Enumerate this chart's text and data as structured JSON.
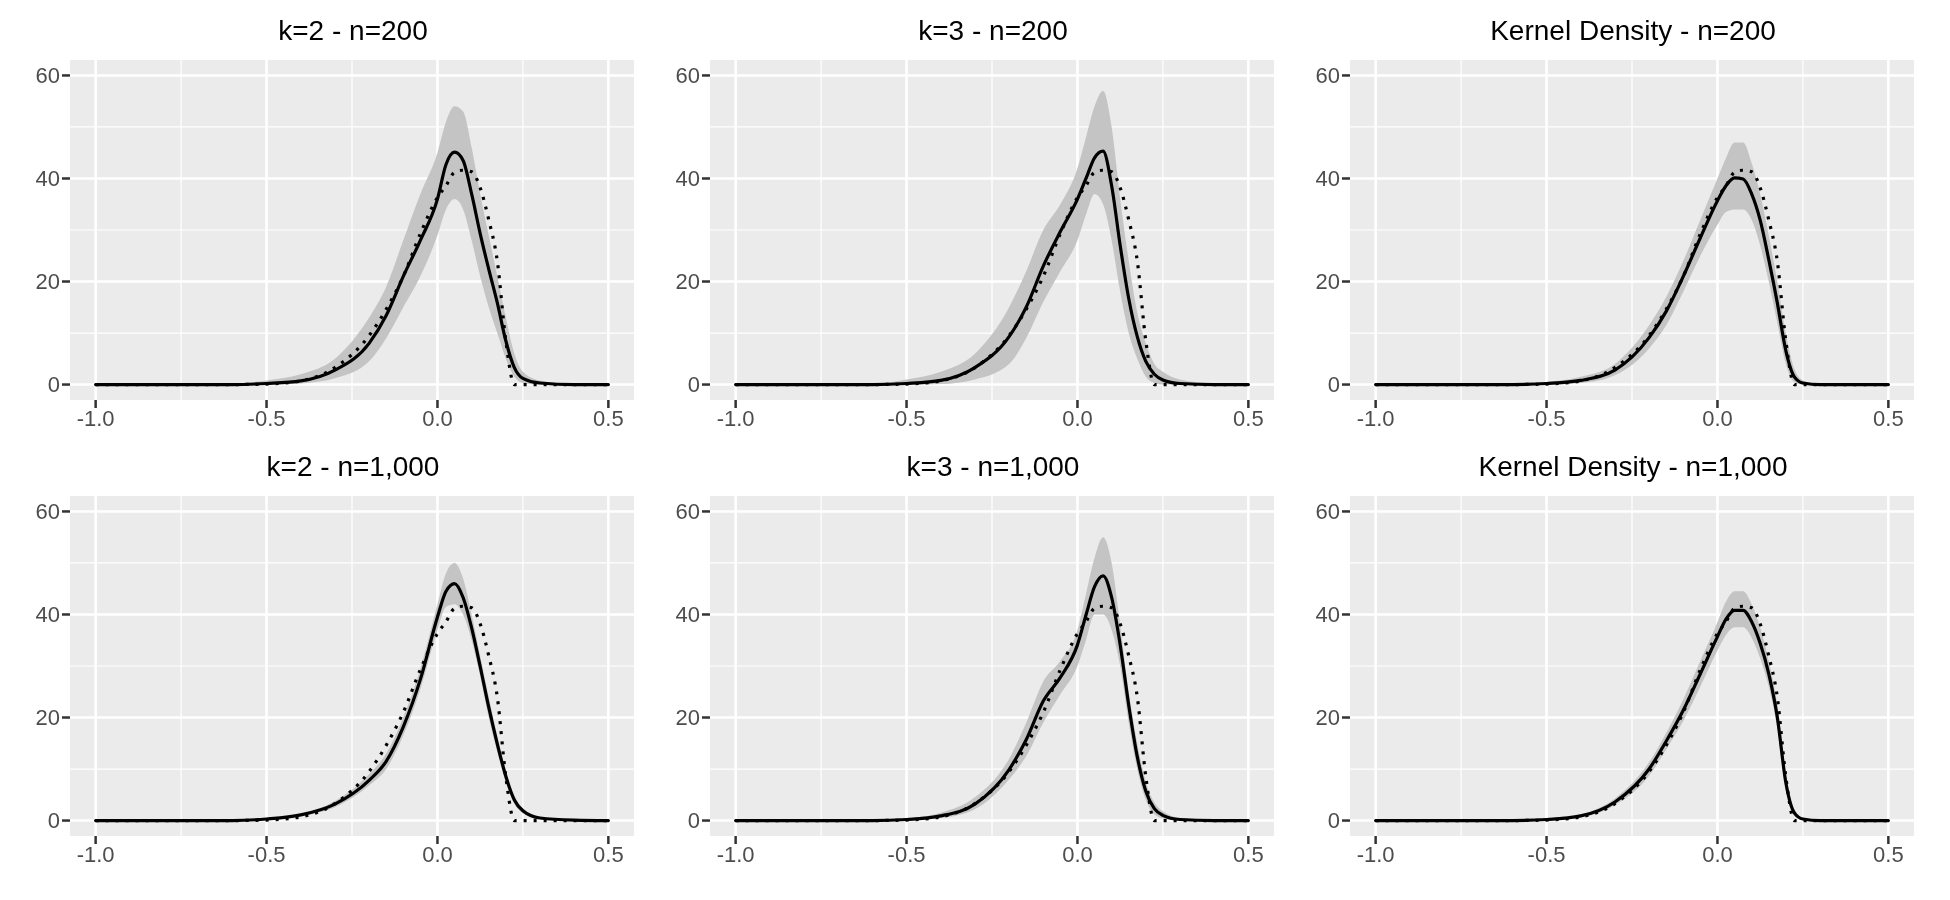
{
  "chart_data": [
    {
      "type": "line",
      "title": "k=2 - n=200",
      "x": [
        -1,
        -0.8,
        -0.6,
        -0.5,
        -0.4,
        -0.3,
        -0.2,
        -0.15,
        -0.1,
        -0.05,
        0,
        0.025,
        0.05,
        0.075,
        0.1,
        0.125,
        0.15,
        0.175,
        0.2,
        0.225,
        0.25,
        0.3,
        0.4,
        0.5
      ],
      "xlim": [
        -1.075,
        0.575
      ],
      "xticks": [
        {
          "value": -1,
          "label": "-1.0"
        },
        {
          "value": -0.5,
          "label": "-0.5"
        },
        {
          "value": 0,
          "label": "0.0"
        },
        {
          "value": 0.5,
          "label": "0.5"
        }
      ],
      "ylim": [
        -3,
        63
      ],
      "yticks": [
        0,
        20,
        40,
        60
      ],
      "grid": true,
      "series": [
        {
          "color": "#000000",
          "line_style": "solid",
          "values": [
            0,
            0,
            0,
            0.2,
            0.7,
            2.8,
            8,
            13.4,
            21,
            28,
            36,
            42.7,
            45.1,
            43.5,
            37,
            29.3,
            22.4,
            15.9,
            8.5,
            3.3,
            1.2,
            0.3,
            0,
            0
          ],
          "lower": [
            0,
            0,
            0,
            0,
            0.2,
            1.2,
            4.5,
            9,
            15,
            21,
            29,
            34,
            36,
            34,
            28,
            21,
            15,
            10,
            5,
            1.5,
            0.3,
            0,
            0,
            0
          ],
          "upper": [
            0,
            0,
            0.2,
            0.8,
            2,
            5,
            13,
            19,
            28,
            37,
            45,
            51,
            54,
            53,
            46,
            37,
            29,
            21,
            13,
            6,
            2.5,
            0.8,
            0.1,
            0
          ]
        },
        {
          "color": "#000000",
          "line_style": "dotted",
          "values": [
            0,
            0,
            0,
            0.1,
            0.7,
            3.3,
            9.5,
            14.6,
            21,
            29.3,
            36.3,
            38.6,
            41.2,
            41.6,
            41.3,
            38.2,
            32,
            24,
            8.5,
            0,
            0,
            0,
            0,
            0
          ]
        }
      ]
    },
    {
      "type": "line",
      "title": "k=3 - n=200",
      "x": [
        -1,
        -0.8,
        -0.6,
        -0.5,
        -0.4,
        -0.3,
        -0.2,
        -0.15,
        -0.1,
        -0.05,
        0,
        0.025,
        0.05,
        0.075,
        0.1,
        0.125,
        0.15,
        0.175,
        0.2,
        0.225,
        0.25,
        0.3,
        0.4,
        0.5
      ],
      "xlim": [
        -1.075,
        0.575
      ],
      "xticks": [
        {
          "value": -1,
          "label": "-1.0"
        },
        {
          "value": -0.5,
          "label": "-0.5"
        },
        {
          "value": 0,
          "label": "0.0"
        },
        {
          "value": 0.5,
          "label": "0.5"
        }
      ],
      "ylim": [
        -3,
        63
      ],
      "yticks": [
        0,
        20,
        40,
        60
      ],
      "grid": true,
      "series": [
        {
          "color": "#000000",
          "line_style": "solid",
          "values": [
            0,
            0,
            0,
            0.2,
            0.8,
            3.3,
            9.3,
            15,
            23,
            29.7,
            36,
            40,
            44,
            45.3,
            38.6,
            27,
            16.7,
            9.3,
            4.5,
            2,
            0.9,
            0.2,
            0,
            0
          ],
          "lower": [
            0,
            0,
            0,
            0,
            0.1,
            1,
            4,
            9,
            16,
            22,
            28,
            33,
            37,
            35,
            28,
            18,
            10,
            5,
            1.5,
            0.3,
            0,
            0,
            0,
            0
          ],
          "upper": [
            0,
            0,
            0.2,
            1,
            2.5,
            6,
            15,
            22,
            30,
            35,
            42,
            48,
            54,
            57,
            50,
            36,
            24,
            14,
            8,
            4,
            2.5,
            1,
            0.2,
            0
          ]
        },
        {
          "color": "#000000",
          "line_style": "dotted",
          "values": [
            0,
            0,
            0,
            0.1,
            0.7,
            3.3,
            9.5,
            14.6,
            21,
            29.3,
            36.3,
            38.6,
            41.2,
            41.6,
            41.3,
            38.2,
            32,
            24,
            8.5,
            0,
            0,
            0,
            0,
            0
          ]
        }
      ]
    },
    {
      "type": "line",
      "title": "Kernel Density - n=200",
      "x": [
        -1,
        -0.8,
        -0.6,
        -0.5,
        -0.4,
        -0.3,
        -0.2,
        -0.15,
        -0.1,
        -0.05,
        0,
        0.025,
        0.05,
        0.075,
        0.1,
        0.125,
        0.15,
        0.175,
        0.2,
        0.225,
        0.25,
        0.3,
        0.4,
        0.5
      ],
      "xlim": [
        -1.075,
        0.575
      ],
      "xticks": [
        {
          "value": -1,
          "label": "-1.0"
        },
        {
          "value": -0.5,
          "label": "-0.5"
        },
        {
          "value": 0,
          "label": "0.0"
        },
        {
          "value": 0.5,
          "label": "0.5"
        }
      ],
      "ylim": [
        -3,
        63
      ],
      "yticks": [
        0,
        20,
        40,
        60
      ],
      "grid": true,
      "series": [
        {
          "color": "#000000",
          "line_style": "solid",
          "values": [
            0,
            0,
            0,
            0.2,
            0.8,
            2.8,
            9.1,
            14.2,
            21,
            28.5,
            35.7,
            38.6,
            40.1,
            39.9,
            37,
            31.9,
            24.3,
            15.9,
            6.6,
            1.5,
            0.3,
            0,
            0,
            0
          ],
          "lower": [
            0,
            0,
            0,
            0,
            0.3,
            1.8,
            7,
            11.5,
            18,
            25,
            31,
            33.5,
            34,
            34,
            32,
            27,
            20,
            12,
            4,
            0.5,
            0,
            0,
            0,
            0
          ],
          "upper": [
            0,
            0,
            0.1,
            0.5,
            1.5,
            4,
            11.5,
            17,
            24,
            32,
            40,
            44,
            47,
            47,
            43,
            37,
            29,
            20,
            10,
            3,
            0.8,
            0,
            0,
            0
          ]
        },
        {
          "color": "#000000",
          "line_style": "dotted",
          "values": [
            0,
            0,
            0,
            0.1,
            0.7,
            3.3,
            9.5,
            14.6,
            21,
            29.3,
            36.3,
            38.6,
            41.2,
            41.6,
            41.3,
            38.2,
            32,
            24,
            8.5,
            0,
            0,
            0,
            0,
            0
          ]
        }
      ]
    },
    {
      "type": "line",
      "title": "k=2 - n=1,000",
      "x": [
        -1,
        -0.8,
        -0.6,
        -0.5,
        -0.4,
        -0.3,
        -0.2,
        -0.15,
        -0.1,
        -0.05,
        0,
        0.025,
        0.05,
        0.075,
        0.1,
        0.125,
        0.15,
        0.175,
        0.2,
        0.225,
        0.25,
        0.3,
        0.4,
        0.5
      ],
      "xlim": [
        -1.075,
        0.575
      ],
      "xticks": [
        {
          "value": -1,
          "label": "-1.0"
        },
        {
          "value": -0.5,
          "label": "-0.5"
        },
        {
          "value": 0,
          "label": "0.0"
        },
        {
          "value": 0.5,
          "label": "0.5"
        }
      ],
      "ylim": [
        -3,
        63
      ],
      "yticks": [
        0,
        20,
        40,
        60
      ],
      "grid": true,
      "series": [
        {
          "color": "#000000",
          "line_style": "solid",
          "values": [
            0,
            0,
            0,
            0.3,
            1.1,
            3.2,
            7.8,
            11.5,
            18.2,
            27.4,
            39.5,
            44.5,
            46,
            43.3,
            37.4,
            29.9,
            22,
            14.9,
            8.6,
            4,
            1.9,
            0.5,
            0.1,
            0
          ],
          "lower": [
            0,
            0,
            0,
            0.2,
            0.9,
            2.6,
            6.8,
            10,
            16.5,
            25.5,
            37,
            41.5,
            42,
            40,
            35,
            28,
            20,
            13.3,
            7.4,
            3.2,
            1.4,
            0.3,
            0,
            0
          ],
          "upper": [
            0,
            0,
            0.1,
            0.4,
            1.3,
            3.8,
            9,
            13,
            20,
            29.5,
            42,
            48,
            50,
            47,
            40,
            32,
            24,
            16.5,
            9.8,
            4.8,
            2.4,
            0.7,
            0.1,
            0
          ]
        },
        {
          "color": "#000000",
          "line_style": "dotted",
          "values": [
            0,
            0,
            0,
            0.1,
            0.7,
            3.3,
            9.5,
            14.6,
            21,
            29.3,
            36.3,
            38.6,
            41.2,
            41.6,
            41.3,
            38.2,
            32,
            24,
            8.5,
            0,
            0,
            0,
            0,
            0
          ]
        }
      ]
    },
    {
      "type": "line",
      "title": "k=3 - n=1,000",
      "x": [
        -1,
        -0.8,
        -0.6,
        -0.5,
        -0.4,
        -0.3,
        -0.2,
        -0.15,
        -0.1,
        -0.05,
        0,
        0.025,
        0.05,
        0.075,
        0.1,
        0.125,
        0.15,
        0.175,
        0.2,
        0.225,
        0.25,
        0.3,
        0.4,
        0.5
      ],
      "xlim": [
        -1.075,
        0.575
      ],
      "xticks": [
        {
          "value": -1,
          "label": "-1.0"
        },
        {
          "value": -0.5,
          "label": "-0.5"
        },
        {
          "value": 0,
          "label": "0.0"
        },
        {
          "value": 0.5,
          "label": "0.5"
        }
      ],
      "ylim": [
        -3,
        63
      ],
      "yticks": [
        0,
        20,
        40,
        60
      ],
      "grid": true,
      "series": [
        {
          "color": "#000000",
          "line_style": "solid",
          "values": [
            0,
            0,
            0,
            0.2,
            0.9,
            3.2,
            9.9,
            15.7,
            23.2,
            27.8,
            34.1,
            39.9,
            45.4,
            47.5,
            43.3,
            34.1,
            22.4,
            12.4,
            5.7,
            2.3,
            1,
            0.2,
            0,
            0
          ],
          "lower": [
            0,
            0,
            0,
            0.1,
            0.5,
            2.2,
            8,
            12.5,
            19,
            24.5,
            30,
            35,
            40,
            40,
            37,
            30,
            19,
            10,
            4,
            1.2,
            0.4,
            0,
            0,
            0
          ],
          "upper": [
            0,
            0,
            0.1,
            0.4,
            1.5,
            4.5,
            12,
            19,
            27,
            31,
            37,
            44,
            51,
            55,
            50,
            38,
            25,
            15,
            7.5,
            3.5,
            1.8,
            0.5,
            0.1,
            0
          ]
        },
        {
          "color": "#000000",
          "line_style": "dotted",
          "values": [
            0,
            0,
            0,
            0.1,
            0.7,
            3.3,
            9.5,
            14.6,
            21,
            29.3,
            36.3,
            38.6,
            41.2,
            41.6,
            41.3,
            38.2,
            32,
            24,
            8.5,
            0,
            0,
            0,
            0,
            0
          ]
        }
      ]
    },
    {
      "type": "line",
      "title": "Kernel Density - n=1,000",
      "x": [
        -1,
        -0.8,
        -0.6,
        -0.5,
        -0.4,
        -0.3,
        -0.2,
        -0.15,
        -0.1,
        -0.05,
        0,
        0.025,
        0.05,
        0.075,
        0.1,
        0.125,
        0.15,
        0.175,
        0.2,
        0.225,
        0.25,
        0.3,
        0.4,
        0.5
      ],
      "xlim": [
        -1.075,
        0.575
      ],
      "xticks": [
        {
          "value": -1,
          "label": "-1.0"
        },
        {
          "value": -0.5,
          "label": "-0.5"
        },
        {
          "value": 0,
          "label": "0.0"
        },
        {
          "value": 0.5,
          "label": "0.5"
        }
      ],
      "ylim": [
        -3,
        63
      ],
      "yticks": [
        0,
        20,
        40,
        60
      ],
      "grid": true,
      "series": [
        {
          "color": "#000000",
          "line_style": "solid",
          "values": [
            0,
            0,
            0,
            0.2,
            0.9,
            3.6,
            10,
            15.4,
            21.4,
            28.5,
            35.7,
            39.1,
            40.8,
            40.8,
            38.6,
            34.4,
            28.5,
            20.1,
            7.4,
            1.5,
            0.3,
            0,
            0,
            0
          ],
          "lower": [
            0,
            0,
            0,
            0.1,
            0.6,
            3,
            8.7,
            13.8,
            19.3,
            26,
            33,
            36,
            37.5,
            37.5,
            35.5,
            31.5,
            26,
            18,
            6,
            0.9,
            0.1,
            0,
            0,
            0
          ],
          "upper": [
            0,
            0,
            0.1,
            0.3,
            1.2,
            4.3,
            11.3,
            17,
            23.5,
            31,
            38.5,
            42.5,
            44.5,
            44.5,
            42,
            37.5,
            31,
            22.5,
            9,
            2.2,
            0.5,
            0,
            0,
            0
          ]
        },
        {
          "color": "#000000",
          "line_style": "dotted",
          "values": [
            0,
            0,
            0,
            0.1,
            0.7,
            3.3,
            9.5,
            14.6,
            21,
            29.3,
            36.3,
            38.6,
            41.2,
            41.6,
            41.3,
            38.2,
            32,
            24,
            8.5,
            0,
            0,
            0,
            0,
            0
          ]
        }
      ]
    }
  ]
}
